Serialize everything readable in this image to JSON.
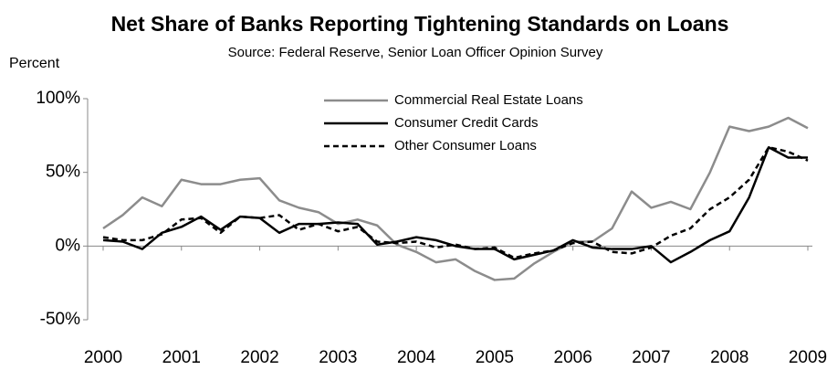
{
  "chart_data": {
    "type": "line",
    "title": "Net Share of Banks Reporting Tightening Standards on Loans",
    "subtitle": "Source: Federal Reserve, Senior Loan Officer Opinion Survey",
    "y_label": "Percent",
    "x": [
      2000,
      2000.25,
      2000.5,
      2000.75,
      2001,
      2001.25,
      2001.5,
      2001.75,
      2002,
      2002.25,
      2002.5,
      2002.75,
      2003,
      2003.25,
      2003.5,
      2003.75,
      2004,
      2004.25,
      2004.5,
      2004.75,
      2005,
      2005.25,
      2005.5,
      2005.75,
      2006,
      2006.25,
      2006.5,
      2006.75,
      2007,
      2007.25,
      2007.5,
      2007.75,
      2008,
      2008.25,
      2008.5,
      2008.75,
      2009
    ],
    "series": [
      {
        "name": "Commercial Real Estate Loans",
        "color": "#8c8c8c",
        "dash": false,
        "values": [
          12,
          21,
          33,
          27,
          45,
          42,
          42,
          45,
          46,
          31,
          26,
          23,
          15,
          18,
          14,
          1,
          -4,
          -11,
          -9,
          -17,
          -23,
          -22,
          -12,
          -4,
          3,
          3,
          12,
          37,
          26,
          30,
          25,
          50,
          81,
          78,
          81,
          87,
          80
        ]
      },
      {
        "name": "Consumer Credit Cards",
        "color": "#000000",
        "dash": false,
        "values": [
          4,
          3,
          -2,
          9,
          13,
          20,
          11,
          20,
          19,
          9,
          15,
          15,
          16,
          15,
          1,
          3,
          6,
          4,
          0,
          -2,
          -2,
          -9,
          -6,
          -3,
          4,
          -1,
          -2,
          -2,
          0,
          -11,
          -4,
          4,
          10,
          33,
          67,
          60,
          60
        ]
      },
      {
        "name": "Other Consumer Loans",
        "color": "#000000",
        "dash": true,
        "values": [
          6,
          4,
          4,
          8,
          18,
          19,
          9,
          20,
          19,
          21,
          11,
          15,
          10,
          13,
          3,
          2,
          3,
          -1,
          1,
          -2,
          -1,
          -8,
          -5,
          -3,
          2,
          3,
          -4,
          -5,
          -1,
          7,
          12,
          25,
          33,
          45,
          67,
          64,
          58
        ]
      }
    ],
    "xlim": [
      2000,
      2009
    ],
    "xticks": [
      2000,
      2001,
      2002,
      2003,
      2004,
      2005,
      2006,
      2007,
      2008,
      2009
    ],
    "ylim": [
      -50,
      100
    ],
    "yticks": [
      {
        "value": -50,
        "label": "-50%"
      },
      {
        "value": 0,
        "label": "0%"
      },
      {
        "value": 50,
        "label": "50%"
      },
      {
        "value": 100,
        "label": "100%"
      }
    ]
  }
}
